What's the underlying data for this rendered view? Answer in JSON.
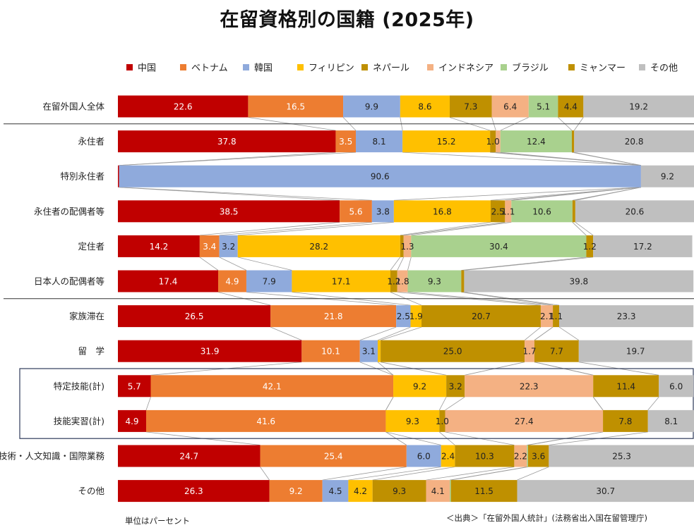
{
  "title": "在留資格別の国籍 (2025年)",
  "unit_note": "単位はパーセント",
  "source_note": "＜出典＞「在留外国人統計」(法務省出入国在留管理庁)",
  "chart_data": {
    "type": "bar",
    "orientation": "horizontal",
    "stacked": "percent",
    "title": "在留資格別の国籍 (2025年)",
    "xlim": [
      0,
      100
    ],
    "legend_position": "top",
    "categories": [
      "在留外国人全体",
      "永住者",
      "特別永住者",
      "永住者の配偶者等",
      "定住者",
      "日本人の配偶者等",
      "家族滞在",
      "留　学",
      "特定技能(計)",
      "技能実習(計)",
      "技術・人文知識・国際業務",
      "その他"
    ],
    "series": [
      {
        "name": "中国",
        "color": "#C00000",
        "values": [
          22.6,
          37.8,
          0.2,
          38.5,
          14.2,
          17.4,
          26.5,
          31.9,
          5.7,
          4.9,
          24.7,
          26.3
        ],
        "labels": [
          "22.6",
          "37.8",
          "",
          "38.5",
          "14.2",
          "17.4",
          "26.5",
          "31.9",
          "5.7",
          "4.9",
          "24.7",
          "26.3"
        ]
      },
      {
        "name": "ベトナム",
        "color": "#ED7D31",
        "values": [
          16.5,
          3.5,
          0,
          5.6,
          3.4,
          4.9,
          21.8,
          10.1,
          42.1,
          41.6,
          25.4,
          9.2
        ],
        "labels": [
          "16.5",
          "3.5",
          "",
          "5.6",
          "3.4",
          "4.9",
          "21.8",
          "10.1",
          "42.1",
          "41.6",
          "25.4",
          "9.2"
        ]
      },
      {
        "name": "韓国",
        "color": "#8FAADC",
        "values": [
          9.9,
          8.1,
          90.6,
          3.8,
          3.2,
          7.9,
          2.5,
          3.1,
          0,
          0,
          6.0,
          4.5
        ],
        "labels": [
          "9.9",
          "8.1",
          "90.6",
          "3.8",
          "3.2",
          "7.9",
          "2.5",
          "3.1",
          "",
          "",
          "6.0",
          "4.5"
        ]
      },
      {
        "name": "フィリピン",
        "color": "#FFC000",
        "values": [
          8.6,
          15.2,
          0,
          16.8,
          28.2,
          17.1,
          1.9,
          0.5,
          9.2,
          9.3,
          2.4,
          4.2
        ],
        "labels": [
          "8.6",
          "15.2",
          "",
          "16.8",
          "28.2",
          "17.1",
          "1.9",
          "",
          "9.2",
          "9.3",
          "2.4",
          "4.2"
        ]
      },
      {
        "name": "ネパール",
        "color": "#BF9000",
        "values": [
          7.3,
          1.0,
          0,
          2.5,
          0.6,
          1.2,
          20.7,
          25.0,
          3.2,
          1.0,
          10.3,
          9.3
        ],
        "labels": [
          "7.3",
          "1.0",
          "",
          "2.5",
          "",
          "1.2",
          "20.7",
          "25.0",
          "3.2",
          "1.0",
          "10.3",
          "9.3"
        ]
      },
      {
        "name": "インドネシア",
        "color": "#F4B183",
        "values": [
          6.4,
          0.8,
          0,
          1.1,
          1.3,
          1.8,
          2.1,
          1.7,
          22.3,
          27.4,
          2.2,
          4.1
        ],
        "labels": [
          "6.4",
          "",
          "",
          "1.1",
          "1.3",
          "1.8",
          "2.1",
          "1.7",
          "22.3",
          "27.4",
          "2.2",
          "4.1"
        ]
      },
      {
        "name": "ブラジル",
        "color": "#A9D18E",
        "values": [
          5.1,
          12.4,
          0,
          10.6,
          30.4,
          9.3,
          0,
          0,
          0,
          0,
          0.2,
          0.2
        ],
        "labels": [
          "5.1",
          "12.4",
          "",
          "10.6",
          "30.4",
          "9.3",
          "",
          "",
          "",
          "",
          "",
          ""
        ]
      },
      {
        "name": "ミャンマー",
        "color": "#BF9000",
        "values": [
          4.4,
          0.4,
          0,
          0.5,
          1.2,
          0.5,
          1.1,
          7.7,
          11.4,
          7.8,
          3.6,
          11.5
        ],
        "labels": [
          "4.4",
          "",
          "",
          "",
          "1.2",
          "",
          "1.1",
          "7.7",
          "11.4",
          "7.8",
          "3.6",
          "11.5"
        ]
      },
      {
        "name": "その他",
        "color": "#BFBFBF",
        "values": [
          19.2,
          20.8,
          9.2,
          20.6,
          17.2,
          39.8,
          23.3,
          19.7,
          6.0,
          8.1,
          25.3,
          30.7
        ],
        "labels": [
          "19.2",
          "20.8",
          "9.2",
          "20.6",
          "17.2",
          "39.8",
          "23.3",
          "19.7",
          "6.0",
          "8.1",
          "25.3",
          "30.7"
        ]
      }
    ],
    "label_colors": [
      "#FFFFFF",
      "#FFFFFF",
      "#222222",
      "#222222",
      "#222222",
      "#222222",
      "#222222",
      "#222222",
      "#222222"
    ]
  }
}
